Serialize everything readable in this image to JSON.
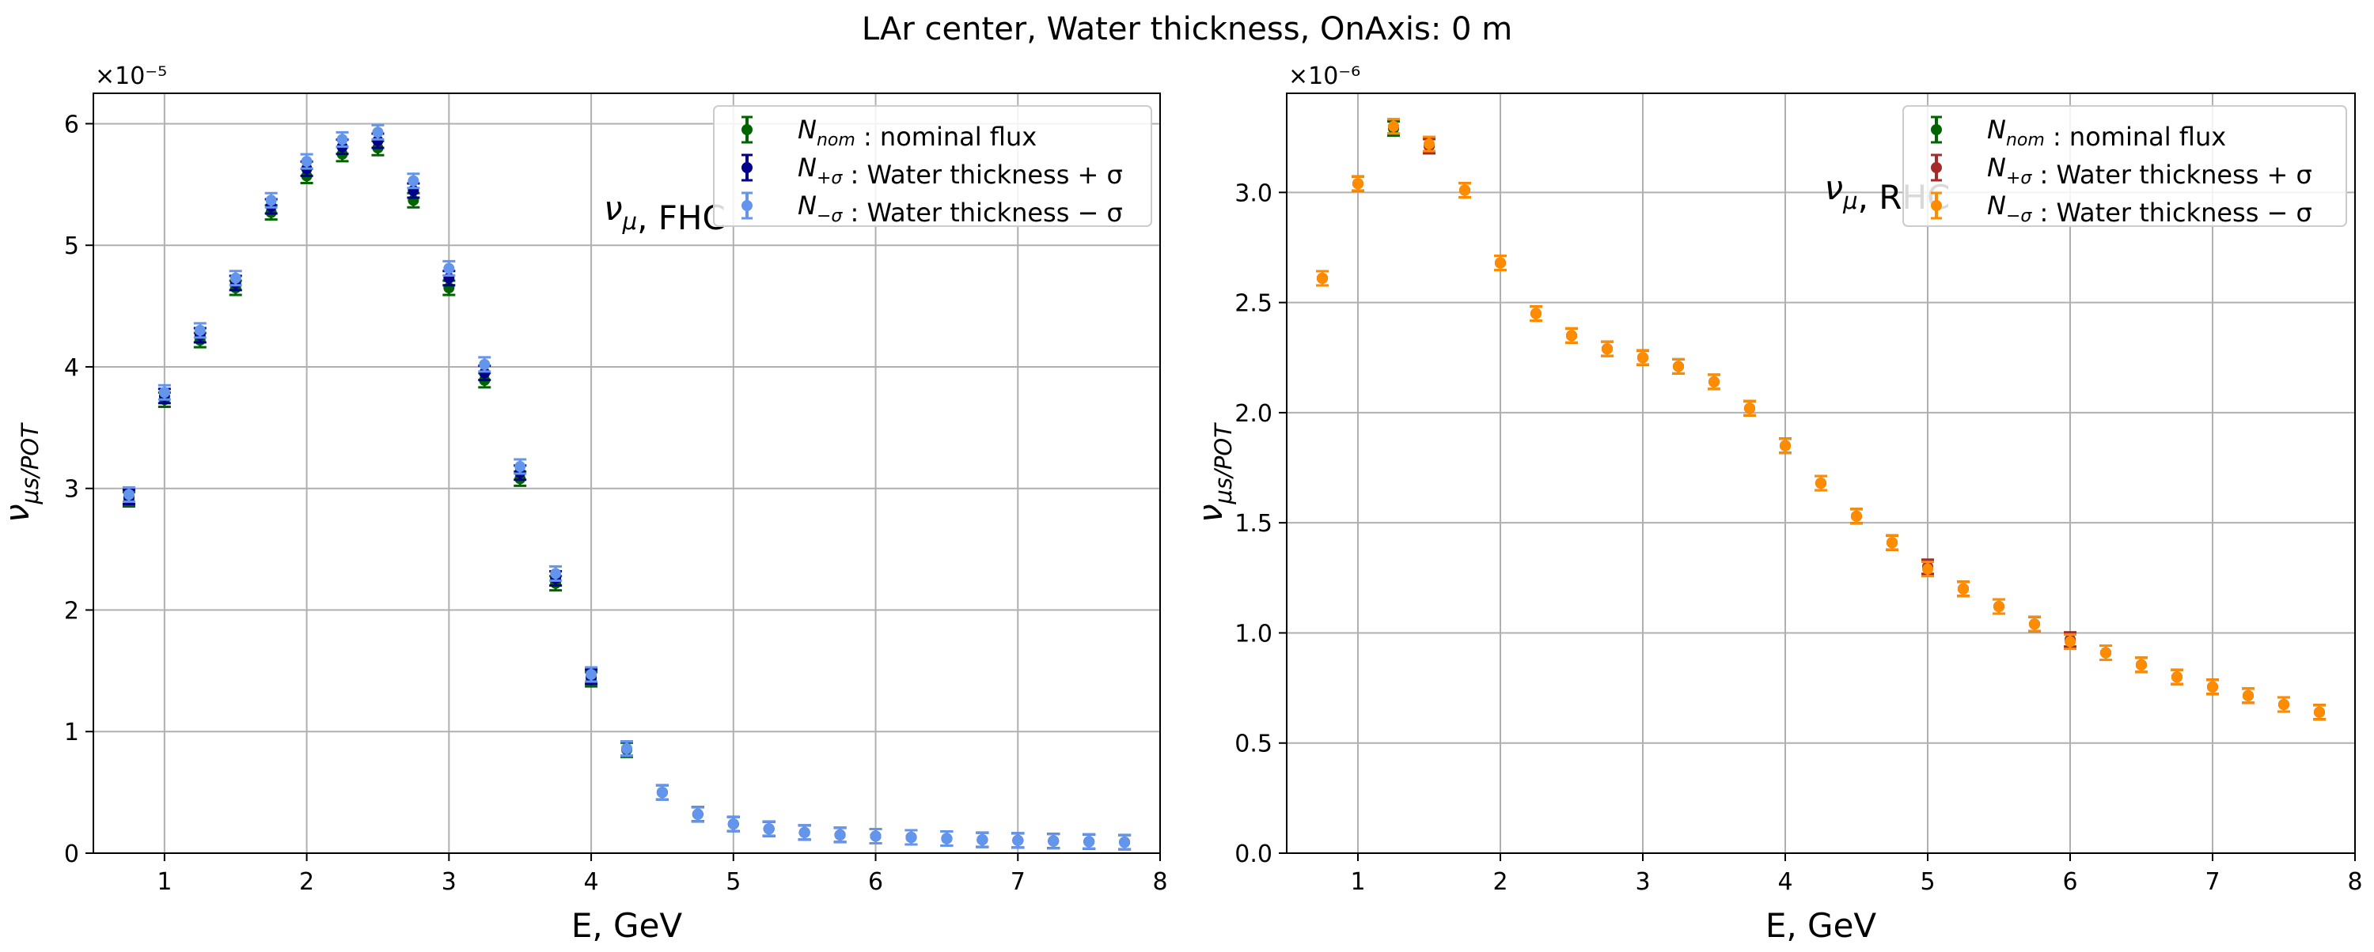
{
  "figure": {
    "title": "LAr center, Water thickness, OnAxis: 0 m"
  },
  "chart_data": [
    {
      "type": "scatter",
      "annotation": "ν_μ, FHC",
      "xlabel": "E, GeV",
      "ylabel": "ν_μs/POT",
      "y_scale_label": "×10⁻⁵",
      "xlim": [
        0.5,
        8
      ],
      "ylim": [
        0,
        6.25
      ],
      "xticks": [
        "1",
        "2",
        "3",
        "4",
        "5",
        "6",
        "7",
        "8"
      ],
      "yticks": [
        "0",
        "1",
        "2",
        "3",
        "4",
        "5",
        "6"
      ],
      "grid": true,
      "legend_position": "top-right",
      "x": [
        0.75,
        1.0,
        1.25,
        1.5,
        1.75,
        2.0,
        2.25,
        2.5,
        2.75,
        3.0,
        3.25,
        3.5,
        3.75,
        4.0,
        4.25,
        4.5,
        4.75,
        5.0,
        5.25,
        5.5,
        5.75,
        6.0,
        6.25,
        6.5,
        6.75,
        7.0,
        7.25,
        7.5,
        7.75
      ],
      "series": [
        {
          "name": "N_nom : nominal flux",
          "color": "#006400",
          "values": [
            2.91,
            3.73,
            4.22,
            4.65,
            5.27,
            5.57,
            5.75,
            5.8,
            5.37,
            4.65,
            3.89,
            3.08,
            2.22,
            1.43,
            0.85,
            0.5,
            0.32,
            0.24,
            0.2,
            0.17,
            0.15,
            0.14,
            0.13,
            0.12,
            0.11,
            0.105,
            0.1,
            0.095,
            0.09
          ]
        },
        {
          "name": "N_+σ : Water thickness + σ",
          "color": "#00008b",
          "values": [
            2.93,
            3.76,
            4.26,
            4.69,
            5.32,
            5.63,
            5.81,
            5.86,
            5.45,
            4.73,
            3.95,
            3.13,
            2.26,
            1.45,
            0.86,
            0.5,
            0.32,
            0.24,
            0.2,
            0.17,
            0.15,
            0.14,
            0.13,
            0.12,
            0.11,
            0.105,
            0.1,
            0.095,
            0.09
          ]
        },
        {
          "name": "N_−σ : Water thickness − σ",
          "color": "#6495ed",
          "values": [
            2.95,
            3.79,
            4.3,
            4.73,
            5.37,
            5.69,
            5.87,
            5.93,
            5.53,
            4.81,
            4.02,
            3.18,
            2.3,
            1.47,
            0.86,
            0.5,
            0.32,
            0.24,
            0.2,
            0.17,
            0.15,
            0.14,
            0.13,
            0.12,
            0.11,
            0.105,
            0.1,
            0.095,
            0.09
          ]
        }
      ]
    },
    {
      "type": "scatter",
      "annotation": "ν_μ, RHC",
      "xlabel": "E, GeV",
      "ylabel": "ν_μs/POT",
      "y_scale_label": "×10⁻⁶",
      "xlim": [
        0.5,
        8
      ],
      "ylim": [
        0,
        3.45
      ],
      "xticks": [
        "1",
        "2",
        "3",
        "4",
        "5",
        "6",
        "7",
        "8"
      ],
      "yticks": [
        "0.0",
        "0.5",
        "1.0",
        "1.5",
        "2.0",
        "2.5",
        "3.0"
      ],
      "grid": true,
      "legend_position": "top-right",
      "x": [
        0.75,
        1.0,
        1.25,
        1.5,
        1.75,
        2.0,
        2.25,
        2.5,
        2.75,
        3.0,
        3.25,
        3.5,
        3.75,
        4.0,
        4.25,
        4.5,
        4.75,
        5.0,
        5.25,
        5.5,
        5.75,
        6.0,
        6.25,
        6.5,
        6.75,
        7.0,
        7.25,
        7.5,
        7.75
      ],
      "series": [
        {
          "name": "N_nom : nominal flux",
          "color": "#006400",
          "values": [
            2.61,
            3.04,
            3.29,
            3.21,
            3.01,
            2.68,
            2.45,
            2.35,
            2.29,
            2.25,
            2.21,
            2.14,
            2.02,
            1.85,
            1.68,
            1.53,
            1.41,
            1.3,
            1.2,
            1.12,
            1.04,
            0.97,
            0.91,
            0.855,
            0.8,
            0.755,
            0.715,
            0.675,
            0.64
          ]
        },
        {
          "name": "N_+σ : Water thickness + σ",
          "color": "#a52a2a",
          "values": [
            2.61,
            3.04,
            3.3,
            3.21,
            3.01,
            2.68,
            2.45,
            2.35,
            2.29,
            2.25,
            2.21,
            2.14,
            2.02,
            1.85,
            1.68,
            1.53,
            1.41,
            1.3,
            1.2,
            1.12,
            1.04,
            0.97,
            0.91,
            0.855,
            0.8,
            0.755,
            0.715,
            0.675,
            0.64
          ]
        },
        {
          "name": "N_−σ : Water thickness − σ",
          "color": "#ff8c00",
          "values": [
            2.61,
            3.04,
            3.3,
            3.22,
            3.01,
            2.68,
            2.45,
            2.35,
            2.29,
            2.25,
            2.21,
            2.14,
            2.02,
            1.85,
            1.68,
            1.53,
            1.41,
            1.29,
            1.2,
            1.12,
            1.04,
            0.96,
            0.91,
            0.855,
            0.8,
            0.755,
            0.715,
            0.675,
            0.64
          ]
        }
      ]
    }
  ]
}
